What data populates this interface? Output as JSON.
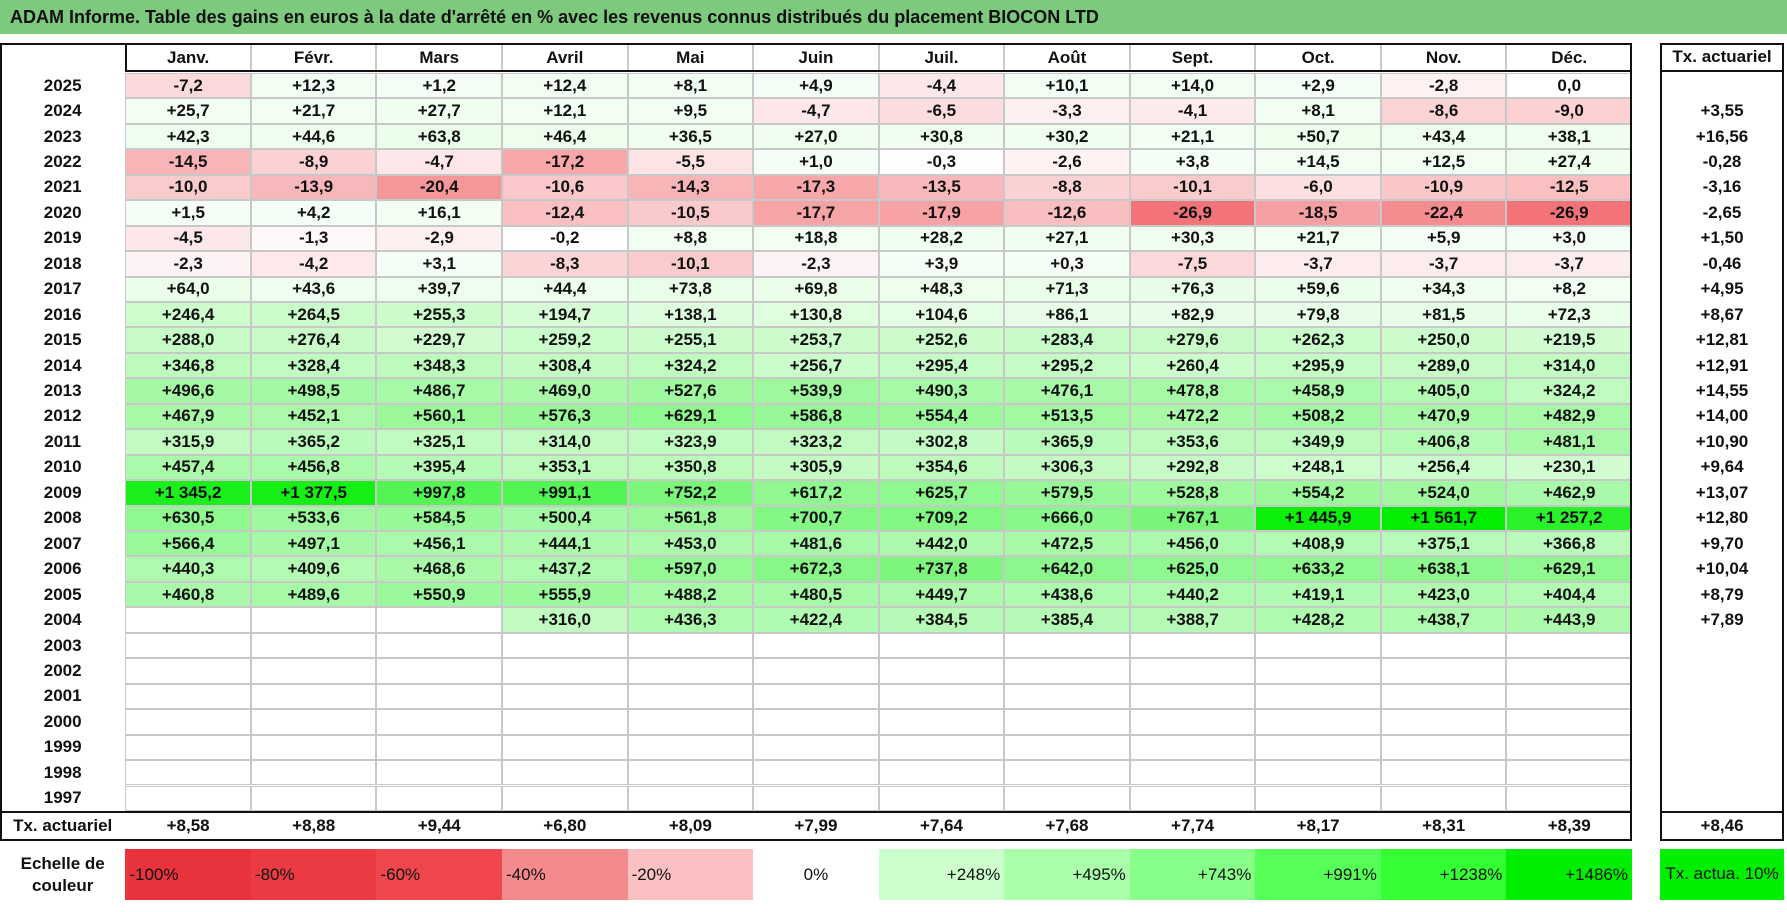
{
  "header": {
    "title": "ADAM Informe. Table des gains en euros à la date d'arrêté en % avec les revenus connus distribués du placement BIOCON LTD"
  },
  "table": {
    "columns": [
      "Janv.",
      "Févr.",
      "Mars",
      "Avril",
      "Mai",
      "Juin",
      "Juil.",
      "Août",
      "Sept.",
      "Oct.",
      "Nov.",
      "Déc."
    ],
    "tx_header": "Tx. actuariel",
    "rows": [
      {
        "year": "2025",
        "values": [
          "-7,2",
          "+12,3",
          "+1,2",
          "+12,4",
          "+8,1",
          "+4,9",
          "-4,4",
          "+10,1",
          "+14,0",
          "+2,9",
          "-2,8",
          "0,0"
        ],
        "tx": null
      },
      {
        "year": "2024",
        "values": [
          "+25,7",
          "+21,7",
          "+27,7",
          "+12,1",
          "+9,5",
          "-4,7",
          "-6,5",
          "-3,3",
          "-4,1",
          "+8,1",
          "-8,6",
          "-9,0"
        ],
        "tx": "+3,55"
      },
      {
        "year": "2023",
        "values": [
          "+42,3",
          "+44,6",
          "+63,8",
          "+46,4",
          "+36,5",
          "+27,0",
          "+30,8",
          "+30,2",
          "+21,1",
          "+50,7",
          "+43,4",
          "+38,1"
        ],
        "tx": "+16,56"
      },
      {
        "year": "2022",
        "values": [
          "-14,5",
          "-8,9",
          "-4,7",
          "-17,2",
          "-5,5",
          "+1,0",
          "-0,3",
          "-2,6",
          "+3,8",
          "+14,5",
          "+12,5",
          "+27,4"
        ],
        "tx": "-0,28"
      },
      {
        "year": "2021",
        "values": [
          "-10,0",
          "-13,9",
          "-20,4",
          "-10,6",
          "-14,3",
          "-17,3",
          "-13,5",
          "-8,8",
          "-10,1",
          "-6,0",
          "-10,9",
          "-12,5"
        ],
        "tx": "-3,16"
      },
      {
        "year": "2020",
        "values": [
          "+1,5",
          "+4,2",
          "+16,1",
          "-12,4",
          "-10,5",
          "-17,7",
          "-17,9",
          "-12,6",
          "-26,9",
          "-18,5",
          "-22,4",
          "-26,9"
        ],
        "tx": "-2,65"
      },
      {
        "year": "2019",
        "values": [
          "-4,5",
          "-1,3",
          "-2,9",
          "-0,2",
          "+8,8",
          "+18,8",
          "+28,2",
          "+27,1",
          "+30,3",
          "+21,7",
          "+5,9",
          "+3,0"
        ],
        "tx": "+1,50"
      },
      {
        "year": "2018",
        "values": [
          "-2,3",
          "-4,2",
          "+3,1",
          "-8,3",
          "-10,1",
          "-2,3",
          "+3,9",
          "+0,3",
          "-7,5",
          "-3,7",
          "-3,7",
          "-3,7"
        ],
        "tx": "-0,46"
      },
      {
        "year": "2017",
        "values": [
          "+64,0",
          "+43,6",
          "+39,7",
          "+44,4",
          "+73,8",
          "+69,8",
          "+48,3",
          "+71,3",
          "+76,3",
          "+59,6",
          "+34,3",
          "+8,2"
        ],
        "tx": "+4,95"
      },
      {
        "year": "2016",
        "values": [
          "+246,4",
          "+264,5",
          "+255,3",
          "+194,7",
          "+138,1",
          "+130,8",
          "+104,6",
          "+86,1",
          "+82,9",
          "+79,8",
          "+81,5",
          "+72,3"
        ],
        "tx": "+8,67"
      },
      {
        "year": "2015",
        "values": [
          "+288,0",
          "+276,4",
          "+229,7",
          "+259,2",
          "+255,1",
          "+253,7",
          "+252,6",
          "+283,4",
          "+279,6",
          "+262,3",
          "+250,0",
          "+219,5"
        ],
        "tx": "+12,81"
      },
      {
        "year": "2014",
        "values": [
          "+346,8",
          "+328,4",
          "+348,3",
          "+308,4",
          "+324,2",
          "+256,7",
          "+295,4",
          "+295,2",
          "+260,4",
          "+295,9",
          "+289,0",
          "+314,0"
        ],
        "tx": "+12,91"
      },
      {
        "year": "2013",
        "values": [
          "+496,6",
          "+498,5",
          "+486,7",
          "+469,0",
          "+527,6",
          "+539,9",
          "+490,3",
          "+476,1",
          "+478,8",
          "+458,9",
          "+405,0",
          "+324,2"
        ],
        "tx": "+14,55"
      },
      {
        "year": "2012",
        "values": [
          "+467,9",
          "+452,1",
          "+560,1",
          "+576,3",
          "+629,1",
          "+586,8",
          "+554,4",
          "+513,5",
          "+472,2",
          "+508,2",
          "+470,9",
          "+482,9"
        ],
        "tx": "+14,00"
      },
      {
        "year": "2011",
        "values": [
          "+315,9",
          "+365,2",
          "+325,1",
          "+314,0",
          "+323,9",
          "+323,2",
          "+302,8",
          "+365,9",
          "+353,6",
          "+349,9",
          "+406,8",
          "+481,1"
        ],
        "tx": "+10,90"
      },
      {
        "year": "2010",
        "values": [
          "+457,4",
          "+456,8",
          "+395,4",
          "+353,1",
          "+350,8",
          "+305,9",
          "+354,6",
          "+306,3",
          "+292,8",
          "+248,1",
          "+256,4",
          "+230,1"
        ],
        "tx": "+9,64"
      },
      {
        "year": "2009",
        "values": [
          "+1 345,2",
          "+1 377,5",
          "+997,8",
          "+991,1",
          "+752,2",
          "+617,2",
          "+625,7",
          "+579,5",
          "+528,8",
          "+554,2",
          "+524,0",
          "+462,9"
        ],
        "tx": "+13,07"
      },
      {
        "year": "2008",
        "values": [
          "+630,5",
          "+533,6",
          "+584,5",
          "+500,4",
          "+561,8",
          "+700,7",
          "+709,2",
          "+666,0",
          "+767,1",
          "+1 445,9",
          "+1 561,7",
          "+1 257,2"
        ],
        "tx": "+12,80"
      },
      {
        "year": "2007",
        "values": [
          "+566,4",
          "+497,1",
          "+456,1",
          "+444,1",
          "+453,0",
          "+481,6",
          "+442,0",
          "+472,5",
          "+456,0",
          "+408,9",
          "+375,1",
          "+366,8"
        ],
        "tx": "+9,70"
      },
      {
        "year": "2006",
        "values": [
          "+440,3",
          "+409,6",
          "+468,6",
          "+437,2",
          "+597,0",
          "+672,3",
          "+737,8",
          "+642,0",
          "+625,0",
          "+633,2",
          "+638,1",
          "+629,1"
        ],
        "tx": "+10,04"
      },
      {
        "year": "2005",
        "values": [
          "+460,8",
          "+489,6",
          "+550,9",
          "+555,9",
          "+488,2",
          "+480,5",
          "+449,7",
          "+438,6",
          "+440,2",
          "+419,1",
          "+423,0",
          "+404,4"
        ],
        "tx": "+8,79"
      },
      {
        "year": "2004",
        "values": [
          null,
          null,
          null,
          "+316,0",
          "+436,3",
          "+422,4",
          "+384,5",
          "+385,4",
          "+388,7",
          "+428,2",
          "+438,7",
          "+443,9"
        ],
        "tx": "+7,89"
      },
      {
        "year": "2003",
        "values": [
          null,
          null,
          null,
          null,
          null,
          null,
          null,
          null,
          null,
          null,
          null,
          null
        ],
        "tx": null
      },
      {
        "year": "2002",
        "values": [
          null,
          null,
          null,
          null,
          null,
          null,
          null,
          null,
          null,
          null,
          null,
          null
        ],
        "tx": null
      },
      {
        "year": "2001",
        "values": [
          null,
          null,
          null,
          null,
          null,
          null,
          null,
          null,
          null,
          null,
          null,
          null
        ],
        "tx": null
      },
      {
        "year": "2000",
        "values": [
          null,
          null,
          null,
          null,
          null,
          null,
          null,
          null,
          null,
          null,
          null,
          null
        ],
        "tx": null
      },
      {
        "year": "1999",
        "values": [
          null,
          null,
          null,
          null,
          null,
          null,
          null,
          null,
          null,
          null,
          null,
          null
        ],
        "tx": null
      },
      {
        "year": "1998",
        "values": [
          null,
          null,
          null,
          null,
          null,
          null,
          null,
          null,
          null,
          null,
          null,
          null
        ],
        "tx": null
      },
      {
        "year": "1997",
        "values": [
          null,
          null,
          null,
          null,
          null,
          null,
          null,
          null,
          null,
          null,
          null,
          null
        ],
        "tx": null
      }
    ],
    "footer": {
      "label": "Tx. actuariel",
      "values": [
        "+8,58",
        "+8,88",
        "+9,44",
        "+6,80",
        "+8,09",
        "+7,99",
        "+7,64",
        "+7,68",
        "+7,74",
        "+8,17",
        "+8,31",
        "+8,39"
      ],
      "tx": "+8,46"
    }
  },
  "legend": {
    "label": "Echelle de couleur",
    "steps": [
      "-100%",
      "-80%",
      "-60%",
      "-40%",
      "-20%",
      "0%",
      "+248%",
      "+495%",
      "+743%",
      "+991%",
      "+1238%",
      "+1486%"
    ],
    "tx": "Tx. actua. 10%"
  }
}
